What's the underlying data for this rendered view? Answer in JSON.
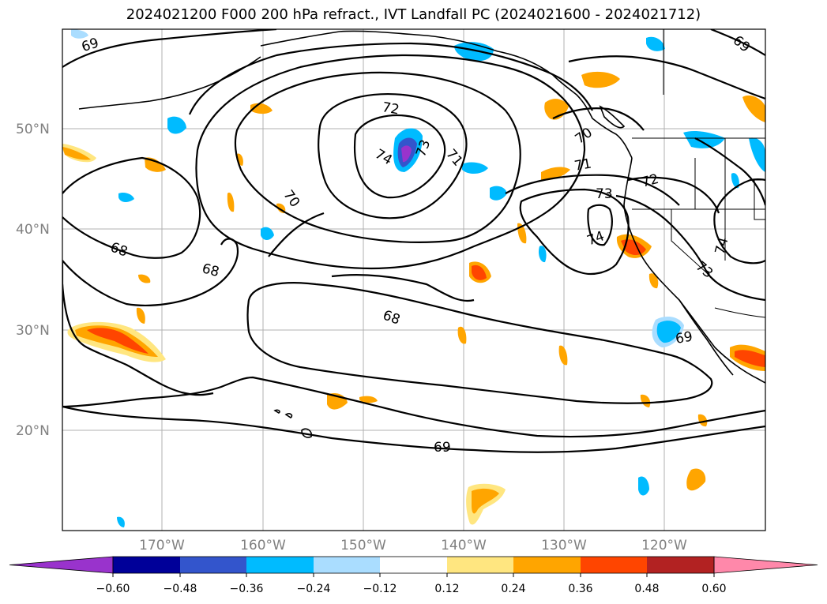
{
  "title": "2024021200 F000 200 hPa refract., IVT Landfall PC (2024021600 - 2024021712)",
  "map": {
    "lat_ticks": [
      "50°N",
      "40°N",
      "30°N",
      "20°N"
    ],
    "lon_ticks": [
      "170°W",
      "160°W",
      "150°W",
      "140°W",
      "130°W",
      "120°W"
    ],
    "contour_labels": [
      "69",
      "68",
      "68",
      "70",
      "72",
      "74",
      "73",
      "71",
      "70",
      "71",
      "72",
      "73",
      "74",
      "74",
      "73",
      "68",
      "69",
      "69",
      "69"
    ]
  },
  "colorbar": {
    "colors": [
      "#9933cc",
      "#000099",
      "#3355cc",
      "#00bbff",
      "#aaddff",
      "#ffffff",
      "#ffe680",
      "#ffa500",
      "#ff4500",
      "#b22222",
      "#ff88aa"
    ],
    "tick_labels": [
      "−0.60",
      "−0.48",
      "−0.36",
      "−0.24",
      "−0.12",
      "0.12",
      "0.24",
      "0.36",
      "0.48",
      "0.60"
    ]
  }
}
